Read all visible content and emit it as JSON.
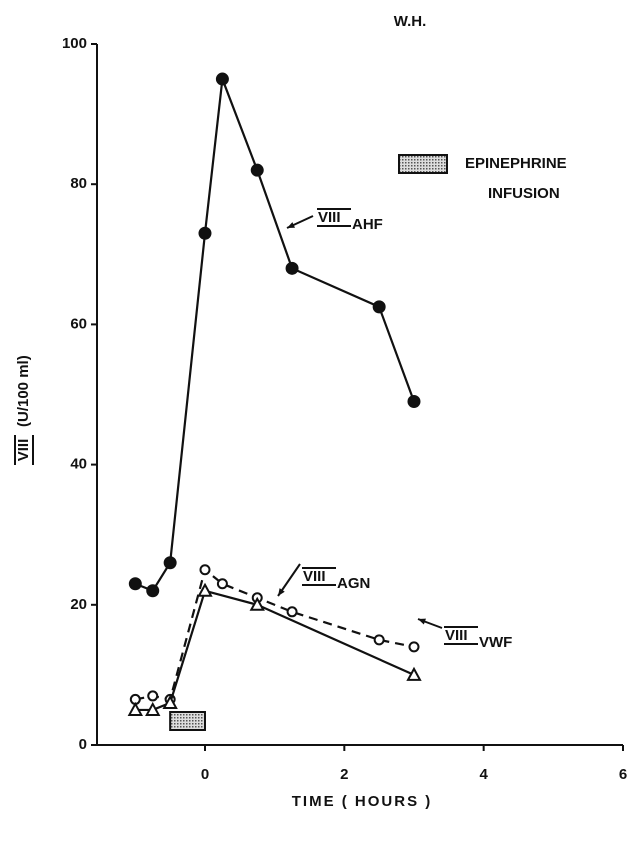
{
  "chart_data": {
    "type": "line",
    "title": "W.H.",
    "xlabel": "TIME ( HOURS )",
    "ylabel": "(U/100 ml)",
    "label_prefix": "VIII",
    "xlim": [
      -1.55,
      6
    ],
    "xticks": [
      0,
      2,
      4,
      6
    ],
    "ylim": [
      0,
      100
    ],
    "yticks": [
      0,
      20,
      40,
      60,
      80,
      100
    ],
    "infusion": {
      "start": -0.5,
      "end": 0,
      "label": [
        "EPINEPHRINE",
        "INFUSION"
      ]
    },
    "series": [
      {
        "name": "AHF",
        "color": "#111111",
        "marker": "filled-circle",
        "dashed": false,
        "x": [
          -1,
          -0.75,
          -0.5,
          0,
          0.25,
          0.75,
          1.25,
          2.5,
          3
        ],
        "values": [
          23,
          22,
          26,
          73,
          95,
          82,
          68,
          62.5,
          49
        ]
      },
      {
        "name": "AGN",
        "color": "#111111",
        "marker": "open-circle",
        "dashed": true,
        "x": [
          -1,
          -0.75,
          -0.5,
          0,
          0.25,
          0.75,
          1.25,
          2.5,
          3
        ],
        "values": [
          6.5,
          7,
          6.5,
          25,
          23,
          21,
          19,
          15,
          14
        ]
      },
      {
        "name": "VWF",
        "color": "#111111",
        "marker": "triangle",
        "dashed": false,
        "x": [
          -1,
          -0.75,
          -0.5,
          0,
          0.75,
          3
        ],
        "values": [
          5,
          5,
          6,
          22,
          20,
          10
        ]
      }
    ]
  }
}
